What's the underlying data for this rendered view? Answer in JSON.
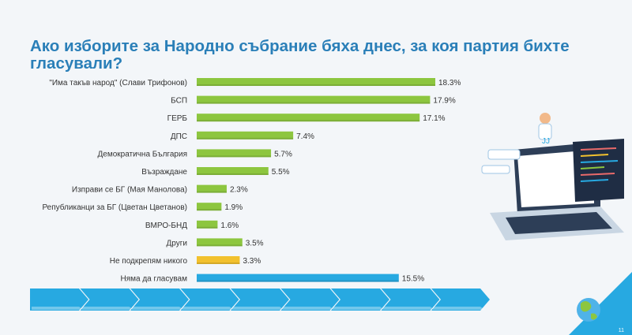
{
  "title": "Ако изборите за Народно събрание бяха днес, за коя партия бихте гласували?",
  "page_number": "11",
  "colors": {
    "green": "#8dc63f",
    "yellow": "#f2c12e",
    "blue": "#27a9e1",
    "title": "#2a7fb8"
  },
  "chart_data": {
    "type": "bar",
    "orientation": "horizontal",
    "categories": [
      "\"Има такъв народ\" (Слави Трифонов)",
      "БСП",
      "ГЕРБ",
      "ДПС",
      "Демократична България",
      "Възраждане",
      "Изправи се БГ (Мая Манолова)",
      "Републиканци за БГ (Цветан Цветанов)",
      "ВМРО-БНД",
      "Други",
      "Не подкрепям никого",
      "Няма да гласувам"
    ],
    "values": [
      18.3,
      17.9,
      17.1,
      7.4,
      5.7,
      5.5,
      2.3,
      1.9,
      1.6,
      3.5,
      3.3,
      15.5
    ],
    "value_labels": [
      "18.3%",
      "17.9%",
      "17.1%",
      "7.4%",
      "5.7%",
      "5.5%",
      "2.3%",
      "1.9%",
      "1.6%",
      "3.5%",
      "3.3%",
      "15.5%"
    ],
    "bar_colors": [
      "green",
      "green",
      "green",
      "green",
      "green",
      "green",
      "green",
      "green",
      "green",
      "green",
      "yellow",
      "blue"
    ],
    "xlim": [
      0,
      18.3
    ],
    "grid": false,
    "legend": "none"
  }
}
